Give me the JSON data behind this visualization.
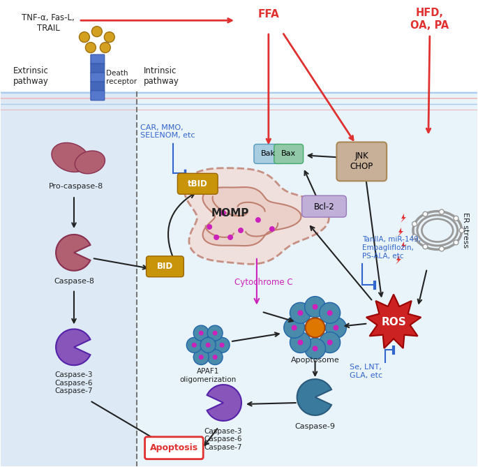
{
  "fig_width": 6.85,
  "fig_height": 6.69,
  "dpi": 100,
  "colors": {
    "red": "#e03030",
    "blue_text": "#3366cc",
    "black": "#222222",
    "mauve_caspase": "#b06070",
    "purple_caspase": "#8855bb",
    "teal_caspase": "#3a7a9c",
    "gold_bid": "#c8950a",
    "mito_fill": "#f2ddd8",
    "mito_border": "#c08070",
    "bak_fill": "#a8cce0",
    "bax_fill": "#90c8a8",
    "bcl2_fill": "#c0b0d8",
    "jnk_fill": "#c8b098",
    "ros_red": "#cc2222",
    "er_gray": "#999999",
    "magenta": "#cc22bb",
    "light_blue_bg": "#ddeaf5",
    "lighter_blue_bg": "#e8f3fa"
  },
  "labels": {
    "tnf": "TNF-α, Fas-L,\nTRAIL",
    "ffa": "FFA",
    "hfd": "HFD,\nOA, PA",
    "extrinsic": "Extrinsic\npathway",
    "intrinsic": "Intrinsic\npathway",
    "death_receptor": "Death\nreceptor",
    "pro_caspase8": "Pro-caspase-8",
    "caspase8": "Caspase-8",
    "caspase367_left": "Caspase-3\nCaspase-6\nCaspase-7",
    "momp": "MOMP",
    "tbid": "tBID",
    "bid": "BID",
    "car": "CAR, MMO,\nSELENOM, etc",
    "bak": "Bak",
    "bax": "Bax",
    "bcl2": "Bcl-2",
    "jnk": "JNK\nCHOP",
    "cytc": "Cytochrome C",
    "apaf1": "APAF1\noligomerization",
    "apoptosome": "Apoptosome",
    "caspase9": "Caspase-9",
    "caspase367_mid": "Caspase-3\nCaspase-6\nCaspase-7",
    "apoptosis": "Apoptosis",
    "ros": "ROS",
    "er_stress": "ER stress",
    "tanIIA": "TanIIA, miR-149,\nEmpagliflozin,\nPS-ALA, etc",
    "se": "Se, LNT,\nGLA, etc"
  }
}
